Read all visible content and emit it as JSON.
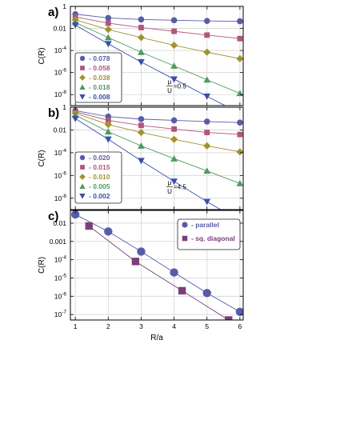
{
  "colors": {
    "blue": "#585ca8",
    "red": "#b0567e",
    "olive": "#a39230",
    "green": "#4f9a62",
    "navy": "#3b4fa8",
    "purple": "#7a3f78"
  },
  "chart_data": [
    {
      "panel_label": "a)",
      "type": "line",
      "xlabel": "",
      "ylabel": "C(R)",
      "scale_y": "log",
      "xlim": [
        0.85,
        6.1
      ],
      "ylim": [
        1e-09,
        1
      ],
      "x_ticks": [
        1,
        2,
        3,
        4,
        5,
        6
      ],
      "y_ticks": [
        {
          "value": 1,
          "label": "1"
        },
        {
          "value": 0.01,
          "label": "0.01"
        },
        {
          "value": 0.0001,
          "label": "10",
          "exp": "-4"
        },
        {
          "value": 1e-06,
          "label": "10",
          "exp": "-6"
        },
        {
          "value": 1e-08,
          "label": "10",
          "exp": "-8"
        }
      ],
      "grid": true,
      "legend_position": "bottom-left",
      "annotation": {
        "num": "μ",
        "den": "U",
        "rest": "=0.5"
      },
      "series": [
        {
          "name": "- 0.078",
          "marker": "circle",
          "color": "#585ca8",
          "x": [
            1,
            2,
            3,
            4,
            5,
            6
          ],
          "y": [
            0.2,
            0.09,
            0.065,
            0.055,
            0.048,
            0.045
          ]
        },
        {
          "name": "- 0.058",
          "marker": "square",
          "color": "#b0567e",
          "x": [
            1,
            2,
            3,
            4,
            5,
            6
          ],
          "y": [
            0.11,
            0.03,
            0.012,
            0.0055,
            0.0025,
            0.0012
          ]
        },
        {
          "name": "- 0.038",
          "marker": "diamond",
          "color": "#a39230",
          "x": [
            1,
            2,
            3,
            4,
            5,
            6
          ],
          "y": [
            0.06,
            0.008,
            0.0015,
            0.0003,
            7e-05,
            1.8e-05
          ]
        },
        {
          "name": "- 0.018",
          "marker": "triangle-up",
          "color": "#4f9a62",
          "x": [
            1,
            2,
            3,
            4,
            5,
            6
          ],
          "y": [
            0.035,
            0.0015,
            7e-05,
            4e-06,
            2.2e-07,
            1.3e-08
          ]
        },
        {
          "name": "- 0.008",
          "marker": "triangle-down",
          "color": "#3b4fa8",
          "x": [
            1,
            2,
            3,
            4,
            5,
            6
          ],
          "y": [
            0.02,
            0.0004,
            9e-06,
            2.5e-07,
            7e-09,
            2e-10
          ]
        }
      ]
    },
    {
      "panel_label": "b)",
      "type": "line",
      "xlabel": "",
      "ylabel": "C(R)",
      "scale_y": "log",
      "xlim": [
        0.85,
        6.1
      ],
      "ylim": [
        1e-09,
        1
      ],
      "x_ticks": [
        1,
        2,
        3,
        4,
        5,
        6
      ],
      "y_ticks": [
        {
          "value": 1,
          "label": "1"
        },
        {
          "value": 0.01,
          "label": "0.01"
        },
        {
          "value": 0.0001,
          "label": "10",
          "exp": "-4"
        },
        {
          "value": 1e-06,
          "label": "10",
          "exp": "-6"
        },
        {
          "value": 1e-08,
          "label": "10",
          "exp": "-8"
        }
      ],
      "grid": true,
      "legend_position": "bottom-left",
      "annotation": {
        "num": "μ",
        "den": "U",
        "rest": "=4.5"
      },
      "series": [
        {
          "name": "- 0.020",
          "marker": "circle",
          "color": "#585ca8",
          "x": [
            1,
            2,
            3,
            4,
            5,
            6
          ],
          "y": [
            0.5,
            0.15,
            0.09,
            0.07,
            0.055,
            0.045
          ]
        },
        {
          "name": "- 0.015",
          "marker": "square",
          "color": "#b0567e",
          "x": [
            1,
            2,
            3,
            4,
            5,
            6
          ],
          "y": [
            0.4,
            0.07,
            0.025,
            0.012,
            0.006,
            0.004
          ]
        },
        {
          "name": "- 0.010",
          "marker": "diamond",
          "color": "#a39230",
          "x": [
            1,
            2,
            3,
            4,
            5,
            6
          ],
          "y": [
            0.3,
            0.03,
            0.006,
            0.0015,
            0.0004,
            0.00012
          ]
        },
        {
          "name": "- 0.005",
          "marker": "triangle-up",
          "color": "#4f9a62",
          "x": [
            1,
            2,
            3,
            4,
            5,
            6
          ],
          "y": [
            0.2,
            0.007,
            0.0004,
            3e-05,
            2.5e-06,
            2e-07
          ]
        },
        {
          "name": "- 0.002",
          "marker": "triangle-down",
          "color": "#3b4fa8",
          "x": [
            1,
            2,
            3,
            4,
            5,
            6
          ],
          "y": [
            0.1,
            0.0015,
            2e-05,
            3e-07,
            5e-09,
            1e-10
          ]
        }
      ]
    },
    {
      "panel_label": "c)",
      "type": "line",
      "xlabel": "R/a",
      "ylabel": "C(R)",
      "scale_y": "log",
      "xlim": [
        0.85,
        6.1
      ],
      "ylim": [
        5e-08,
        0.05
      ],
      "x_ticks": [
        1,
        2,
        3,
        4,
        5,
        6
      ],
      "y_ticks": [
        {
          "value": 0.01,
          "label": "0.01"
        },
        {
          "value": 0.001,
          "label": "0.001"
        },
        {
          "value": 0.0001,
          "label": "10",
          "exp": "-4"
        },
        {
          "value": 1e-05,
          "label": "10",
          "exp": "-5"
        },
        {
          "value": 1e-06,
          "label": "10",
          "exp": "-6"
        },
        {
          "value": 1e-07,
          "label": "10",
          "exp": "-7"
        }
      ],
      "grid": true,
      "legend_position": "top-right",
      "series": [
        {
          "name": "- parallel",
          "marker": "circle",
          "color": "#585ca8",
          "x": [
            1,
            2,
            3,
            4,
            5,
            6
          ],
          "y": [
            0.03,
            0.0035,
            0.00028,
            2e-05,
            1.5e-06,
            1.4e-07
          ]
        },
        {
          "name": "- sq. diagonal",
          "marker": "square",
          "color": "#7a3f78",
          "x": [
            1.414,
            2.828,
            4.243,
            5.657
          ],
          "y": [
            0.007,
            8e-05,
            2e-06,
            5e-08
          ]
        }
      ]
    }
  ]
}
